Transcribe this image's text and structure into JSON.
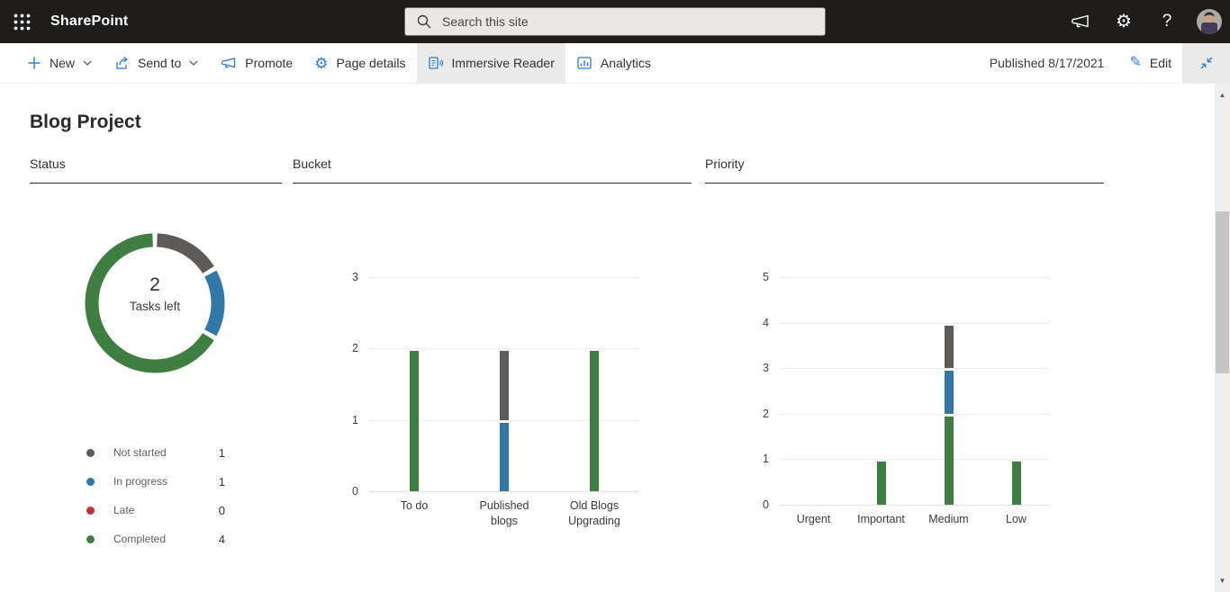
{
  "header": {
    "app_name": "SharePoint",
    "search": {
      "placeholder": "Search this site"
    },
    "right_icons": [
      "megaphone-icon",
      "settings-gear-icon",
      "help-icon",
      "account-avatar"
    ]
  },
  "command_bar": {
    "items": [
      {
        "label": "New",
        "icon": "plus-icon",
        "has_chevron": true,
        "highlighted": false
      },
      {
        "label": "Send to",
        "icon": "share-icon",
        "has_chevron": true,
        "highlighted": false
      },
      {
        "label": "Promote",
        "icon": "megaphone-icon",
        "has_chevron": false,
        "highlighted": false
      },
      {
        "label": "Page details",
        "icon": "gear-icon",
        "has_chevron": false,
        "highlighted": false
      },
      {
        "label": "Immersive Reader",
        "icon": "immersive-reader-icon",
        "has_chevron": false,
        "highlighted": true
      },
      {
        "label": "Analytics",
        "icon": "analytics-icon",
        "has_chevron": false,
        "highlighted": false
      }
    ],
    "published_label": "Published 8/17/2021",
    "edit_label": "Edit",
    "edit_icon": "pencil-icon",
    "collapse_icon": "collapse-icon"
  },
  "page": {
    "title": "Blog Project"
  },
  "sections": {
    "status": "Status",
    "bucket": "Bucket",
    "priority": "Priority"
  },
  "colors": {
    "completed_green": "#3f7e41",
    "in_progress_blue": "#3178a9",
    "not_started_gray": "#5d5a58",
    "late_red": "#c4313b",
    "accent_blue": "#2b7cd3",
    "header_bg": "#1e1d1c"
  },
  "chart_data": [
    {
      "type": "pie",
      "title": "Status",
      "subtype": "donut",
      "center_value": "2",
      "center_label": "Tasks left",
      "slices": [
        {
          "label": "Not started",
          "value": 1,
          "color": "#5d5a58"
        },
        {
          "label": "In progress",
          "value": 1,
          "color": "#3178a9"
        },
        {
          "label": "Late",
          "value": 0,
          "color": "#c4313b"
        },
        {
          "label": "Completed",
          "value": 4,
          "color": "#3f7e41"
        }
      ],
      "legend_position": "below"
    },
    {
      "type": "bar",
      "title": "Bucket",
      "stacked": true,
      "categories": [
        "To do",
        "Published blogs",
        "Old Blogs Upgrading"
      ],
      "series": [
        {
          "name": "Completed",
          "color": "#3f7e41",
          "values": [
            2,
            0,
            2
          ]
        },
        {
          "name": "In progress",
          "color": "#3178a9",
          "values": [
            0,
            1,
            0
          ]
        },
        {
          "name": "Not started",
          "color": "#5d5a58",
          "values": [
            0,
            1,
            0
          ]
        }
      ],
      "ylim": [
        0,
        3
      ],
      "yticks": [
        0,
        1,
        2,
        3
      ],
      "grid": true,
      "legend_position": "none"
    },
    {
      "type": "bar",
      "title": "Priority",
      "stacked": true,
      "categories": [
        "Urgent",
        "Important",
        "Medium",
        "Low"
      ],
      "series": [
        {
          "name": "Completed",
          "color": "#3f7e41",
          "values": [
            0,
            1,
            2,
            1
          ]
        },
        {
          "name": "In progress",
          "color": "#3178a9",
          "values": [
            0,
            0,
            1,
            0
          ]
        },
        {
          "name": "Not started",
          "color": "#5d5a58",
          "values": [
            0,
            0,
            1,
            0
          ]
        }
      ],
      "ylim": [
        0,
        5
      ],
      "yticks": [
        0,
        1,
        2,
        3,
        4,
        5
      ],
      "grid": true,
      "legend_position": "none"
    }
  ]
}
